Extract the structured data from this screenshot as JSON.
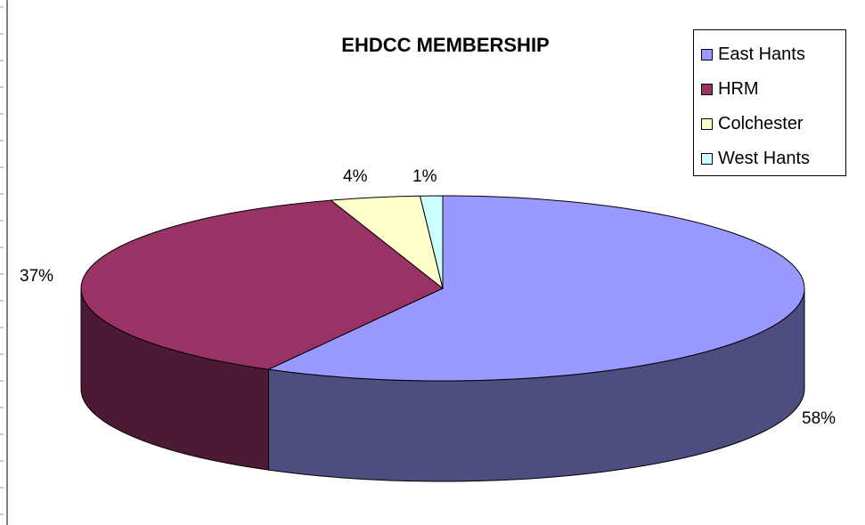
{
  "chart_data": {
    "type": "pie",
    "title": "EHDCC MEMBERSHIP",
    "categories": [
      "East Hants",
      "HRM",
      "Colchester",
      "West Hants"
    ],
    "values": [
      58,
      37,
      4,
      1
    ],
    "labels": [
      "58%",
      "37%",
      "4%",
      "1%"
    ],
    "colors": [
      "#9999ff",
      "#993366",
      "#ffffcc",
      "#ccffff"
    ],
    "side_colors": [
      "#4d4d80",
      "#4d1a33",
      "#808066",
      "#668080"
    ],
    "legend_position": "top-right",
    "style": "3d"
  }
}
